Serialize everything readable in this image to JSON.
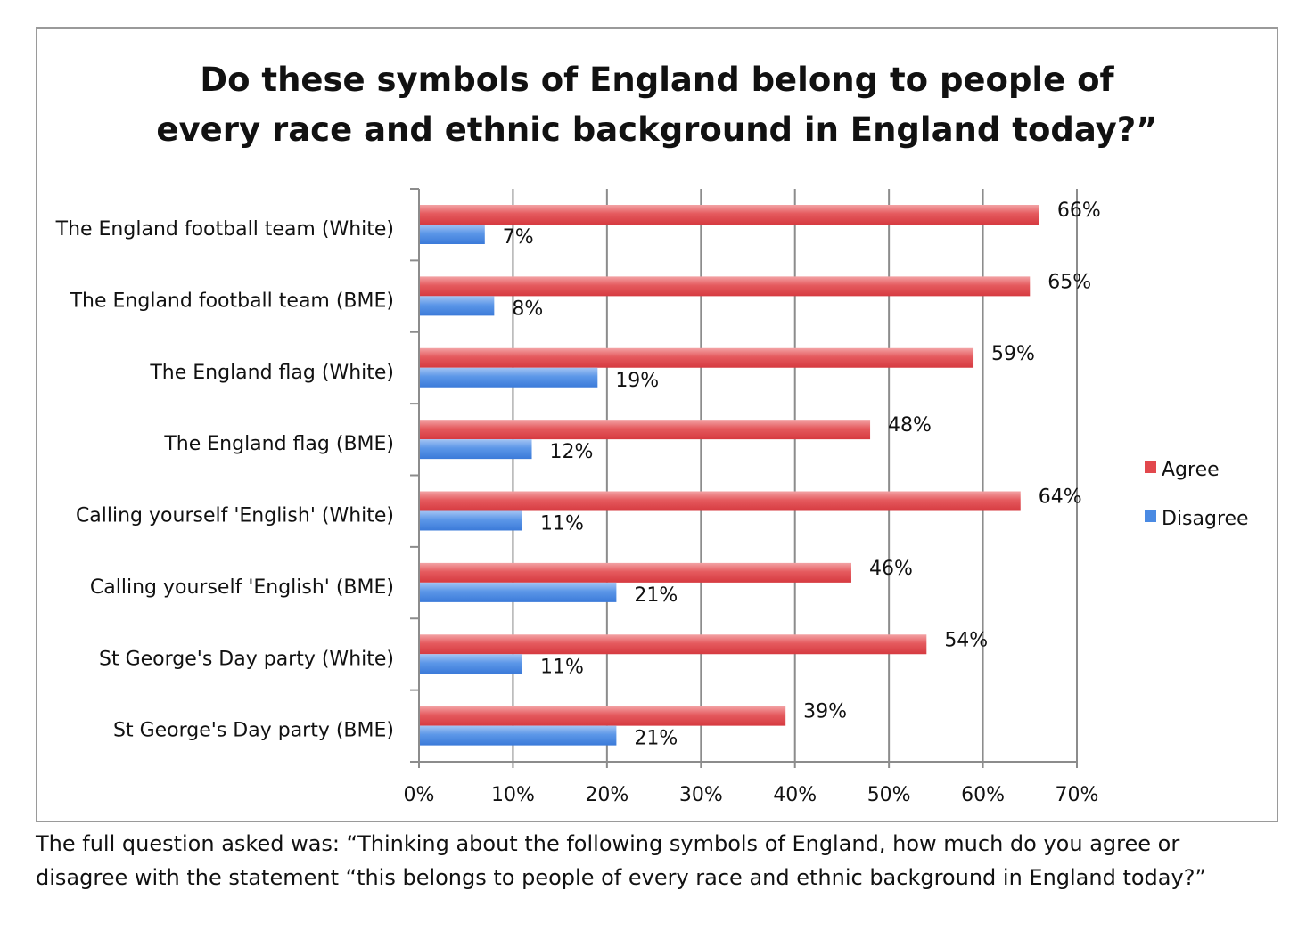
{
  "chart_data": {
    "type": "bar",
    "orientation": "horizontal",
    "title_lines": [
      "Do these symbols of England belong to people of",
      "every race and ethnic background in England today?”"
    ],
    "categories": [
      "The England football team (White)",
      "The England football team (BME)",
      "The England flag (White)",
      "The England flag (BME)",
      "Calling yourself 'English' (White)",
      "Calling yourself 'English' (BME)",
      "St George's Day party (White)",
      "St George's Day party (BME)"
    ],
    "series": [
      {
        "name": "Agree",
        "values": [
          66,
          65,
          59,
          48,
          64,
          46,
          54,
          39
        ],
        "color": "#e2484d"
      },
      {
        "name": "Disagree",
        "values": [
          7,
          8,
          19,
          12,
          11,
          21,
          11,
          21
        ],
        "color": "#4a8ae3"
      }
    ],
    "value_suffix": "%",
    "xlim": [
      0,
      70
    ],
    "x_ticks": [
      0,
      10,
      20,
      30,
      40,
      50,
      60,
      70
    ],
    "x_tick_labels": [
      "0%",
      "10%",
      "20%",
      "30%",
      "40%",
      "50%",
      "60%",
      "70%"
    ],
    "grid": true,
    "legend_position": "right"
  },
  "caption_lines": [
    "The full question asked was: “Thinking about the following symbols of England, how much do you agree or",
    "disagree with the statement “this belongs to people of every race and ethnic background in England today?”"
  ]
}
